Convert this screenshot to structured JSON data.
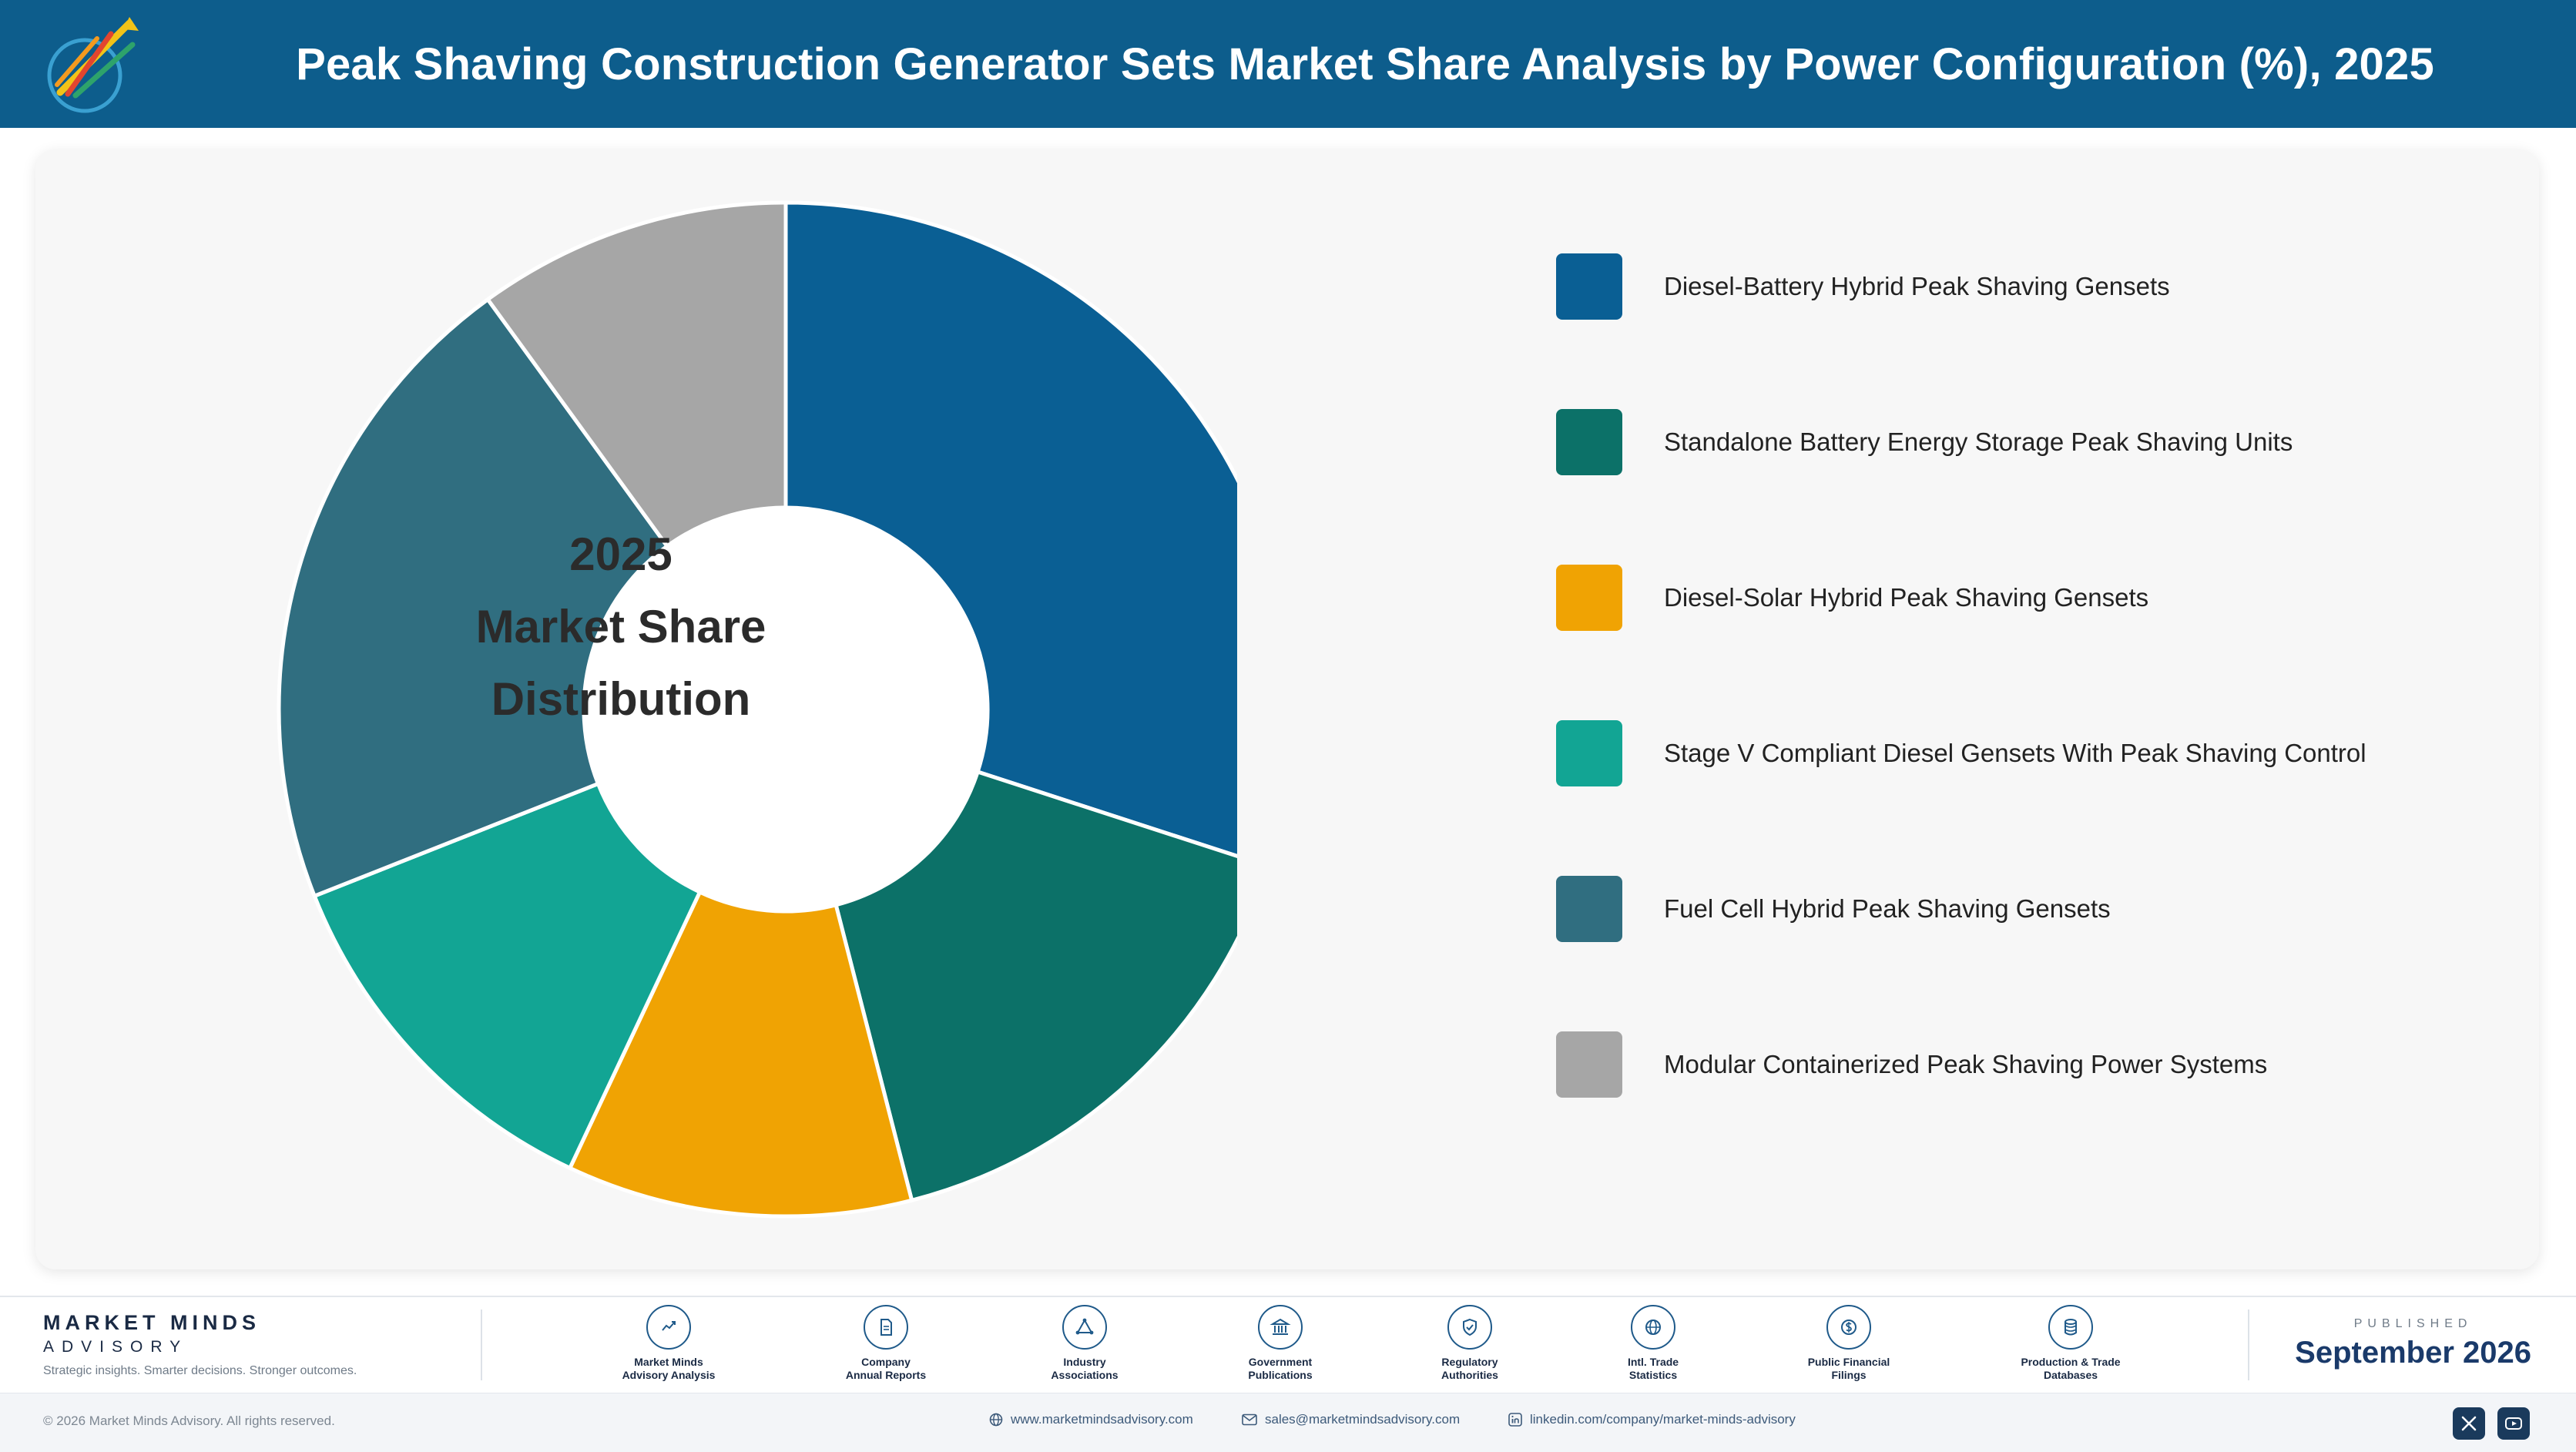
{
  "header": {
    "title": "Peak Shaving Construction Generator Sets Market Share Analysis by Power Configuration (%), 2025",
    "logo_icon": "market-minds-logo-icon"
  },
  "chart_data": {
    "type": "pie",
    "title": "Peak Shaving Construction Generator Sets Market Share Analysis by Power Configuration (%), 2025",
    "center_label": [
      "2025",
      "Market Share",
      "Distribution"
    ],
    "categories": [
      "Diesel-Battery Hybrid Peak Shaving Gensets",
      "Standalone Battery Energy Storage Peak Shaving Units",
      "Diesel-Solar Hybrid Peak Shaving Gensets",
      "Stage V Compliant Diesel Gensets With Peak Shaving Control",
      "Fuel Cell Hybrid Peak Shaving Gensets",
      "Modular Containerized Peak Shaving Power Systems"
    ],
    "values": [
      30,
      16,
      11,
      12,
      21,
      10
    ],
    "unit": "%",
    "colors": [
      "#0a5f94",
      "#0c7168",
      "#f0a303",
      "#12a594",
      "#306e80",
      "#a6a6a6"
    ],
    "legend_position": "right",
    "donut": true
  },
  "footer": {
    "brand_name": "MARKET MINDS",
    "brand_sub": "ADVISORY",
    "brand_tagline": "Strategic insights. Smarter decisions. Stronger outcomes.",
    "sources": [
      {
        "label": "Market Minds\nAdvisory Analysis",
        "icon": "trend-chart-icon"
      },
      {
        "label": "Company\nAnnual Reports",
        "icon": "document-icon"
      },
      {
        "label": "Industry\nAssociations",
        "icon": "network-icon"
      },
      {
        "label": "Government\nPublications",
        "icon": "government-building-icon"
      },
      {
        "label": "Regulatory\nAuthorities",
        "icon": "shield-check-icon"
      },
      {
        "label": "Intl. Trade\nStatistics",
        "icon": "globe-icon"
      },
      {
        "label": "Public Financial\nFilings",
        "icon": "dollar-coin-icon"
      },
      {
        "label": "Production & Trade\nDatabases",
        "icon": "database-icon"
      }
    ],
    "published_label": "PUBLISHED",
    "published_date": "September 2026",
    "copyright": "© 2026 Market Minds Advisory. All rights reserved.",
    "website": "www.marketmindsadvisory.com",
    "email": "sales@marketmindsadvisory.com",
    "linkedin": "linkedin.com/company/market-minds-advisory"
  }
}
